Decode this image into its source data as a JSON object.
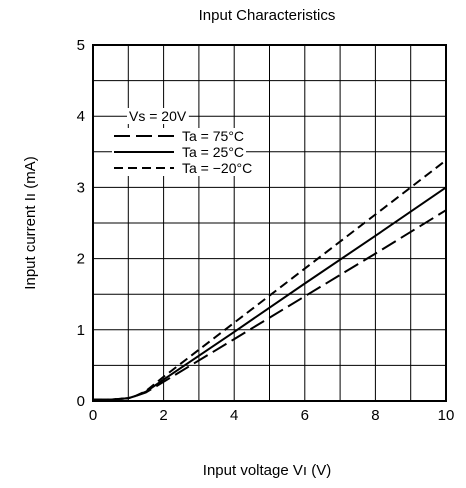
{
  "chart_data": {
    "type": "line",
    "title": "Input Characteristics",
    "xlabel": "Input voltage  Vı (V)",
    "ylabel": "Input current  Iı (mA)",
    "xlim": [
      0,
      10
    ],
    "ylim": [
      0,
      5
    ],
    "xticks": [
      "0",
      "2",
      "4",
      "6",
      "8",
      "10"
    ],
    "yticks": [
      "0",
      "1",
      "2",
      "3",
      "4",
      "5"
    ],
    "grid": true,
    "legend_position": "top-left",
    "legend_header": "Vs = 20V",
    "series": [
      {
        "name": "Ta = 75°C",
        "dash": "long-dash",
        "x": [
          0,
          0.5,
          1.0,
          1.2,
          1.5,
          2,
          4,
          6,
          8,
          10
        ],
        "y": [
          0.02,
          0.02,
          0.04,
          0.07,
          0.12,
          0.27,
          0.87,
          1.47,
          2.07,
          2.68
        ]
      },
      {
        "name": "Ta = 25°C",
        "dash": "solid",
        "x": [
          0,
          0.5,
          1.0,
          1.2,
          1.5,
          2,
          4,
          6,
          8,
          10
        ],
        "y": [
          0.02,
          0.02,
          0.04,
          0.07,
          0.13,
          0.3,
          0.97,
          1.65,
          2.32,
          3.0
        ]
      },
      {
        "name": "Ta = −20°C",
        "dash": "short-dash",
        "x": [
          0,
          0.5,
          1.0,
          1.2,
          1.5,
          2,
          4,
          6,
          8,
          10
        ],
        "y": [
          0.02,
          0.02,
          0.04,
          0.07,
          0.14,
          0.34,
          1.1,
          1.86,
          2.62,
          3.38
        ]
      }
    ]
  }
}
